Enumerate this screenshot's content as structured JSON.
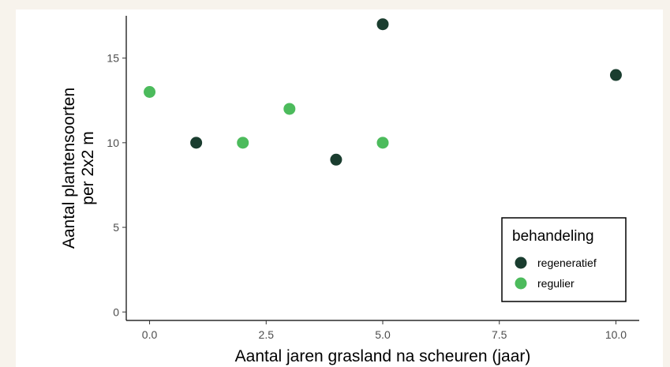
{
  "chart_data": {
    "type": "scatter",
    "title": "",
    "xlabel": "Aantal jaren grasland na scheuren (jaar)",
    "ylabel_lines": [
      "Aantal plantensoorten",
      "per 2x2 m"
    ],
    "xlim": [
      -0.5,
      10.5
    ],
    "ylim": [
      -0.5,
      17.5
    ],
    "x_ticks": [
      0,
      2.5,
      5,
      7.5,
      10
    ],
    "x_tick_labels": [
      "0.0",
      "2.5",
      "5.0",
      "7.5",
      "10.0"
    ],
    "y_ticks": [
      0,
      5,
      10,
      15
    ],
    "y_tick_labels": [
      "0",
      "5",
      "10",
      "15"
    ],
    "grid": false,
    "legend": {
      "title": "behandeling",
      "position": "bottom-right",
      "entries": [
        "regeneratief",
        "regulier"
      ]
    },
    "series": [
      {
        "name": "regeneratief",
        "color": "#1a3d2f",
        "points": [
          {
            "x": 1,
            "y": 10
          },
          {
            "x": 4,
            "y": 9
          },
          {
            "x": 5,
            "y": 17
          },
          {
            "x": 10,
            "y": 14
          }
        ]
      },
      {
        "name": "regulier",
        "color": "#4cbb5c",
        "points": [
          {
            "x": 0,
            "y": 13
          },
          {
            "x": 2,
            "y": 10
          },
          {
            "x": 3,
            "y": 12
          },
          {
            "x": 5,
            "y": 10
          }
        ]
      }
    ]
  }
}
